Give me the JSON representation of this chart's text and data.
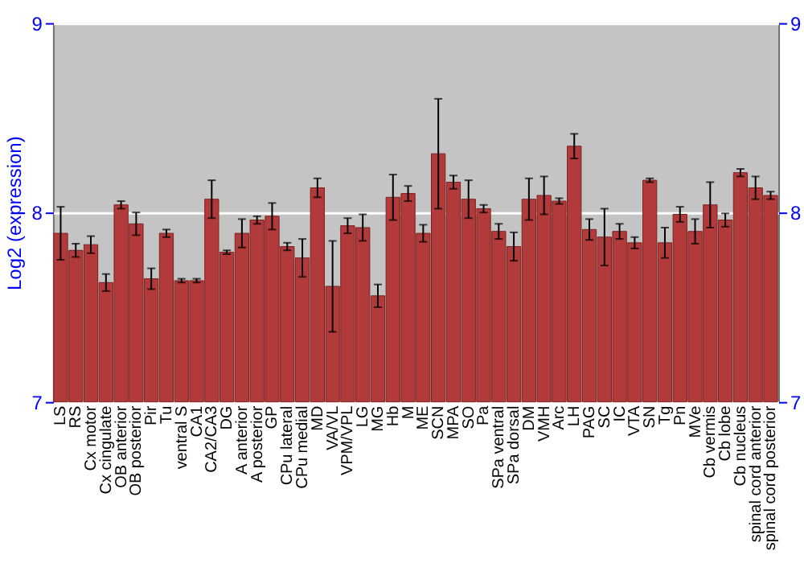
{
  "chart_data": {
    "type": "bar",
    "ylabel": "Log2 (expression)",
    "categories": [
      "LS",
      "RS",
      "Cx motor",
      "Cx cingulate",
      "OB anterior",
      "OB posterior",
      "Pir",
      "Tu",
      "ventral S",
      "CA1",
      "CA2/CA3",
      "DG",
      "A anterior",
      "A posterior",
      "GP",
      "CPu lateral",
      "CPu medial",
      "MD",
      "VA/VL",
      "VPM/VPL",
      "LG",
      "MG",
      "Hb",
      "M",
      "ME",
      "SCN",
      "MPA",
      "SO",
      "Pa",
      "SPa ventral",
      "SPa dorsal",
      "DM",
      "VMH",
      "Arc",
      "LH",
      "PAG",
      "SC",
      "IC",
      "VTA",
      "SN",
      "Tg",
      "Pn",
      "MVe",
      "Cb vermis",
      "Cb lobe",
      "Cb nucleus",
      "spinal cord anterior",
      "spinal cord posterior"
    ],
    "values": [
      7.89,
      7.8,
      7.83,
      7.63,
      8.04,
      7.94,
      7.65,
      7.89,
      7.64,
      7.64,
      8.07,
      7.79,
      7.89,
      7.96,
      7.98,
      7.82,
      7.76,
      8.13,
      7.61,
      7.93,
      7.92,
      7.56,
      8.08,
      8.1,
      7.89,
      8.31,
      8.16,
      8.07,
      8.02,
      7.9,
      7.82,
      8.07,
      8.09,
      8.06,
      8.35,
      7.91,
      7.87,
      7.9,
      7.84,
      8.17,
      7.84,
      7.99,
      7.9,
      8.04,
      7.96,
      8.21,
      8.13,
      8.09
    ],
    "errors": [
      0.14,
      0.035,
      0.045,
      0.045,
      0.02,
      0.06,
      0.055,
      0.02,
      0.01,
      0.01,
      0.1,
      0.01,
      0.075,
      0.02,
      0.07,
      0.02,
      0.1,
      0.05,
      0.24,
      0.04,
      0.07,
      0.06,
      0.12,
      0.04,
      0.045,
      0.29,
      0.035,
      0.1,
      0.02,
      0.04,
      0.075,
      0.11,
      0.1,
      0.015,
      0.065,
      0.055,
      0.15,
      0.04,
      0.03,
      0.01,
      0.08,
      0.04,
      0.065,
      0.12,
      0.035,
      0.02,
      0.06,
      0.02
    ],
    "color": "#b33a3a",
    "ylim": [
      7,
      9
    ],
    "yticks": [
      7,
      8,
      9
    ],
    "y2lim": [
      7,
      9
    ],
    "y2ticks": [
      7,
      8,
      9
    ],
    "grid": "y"
  }
}
